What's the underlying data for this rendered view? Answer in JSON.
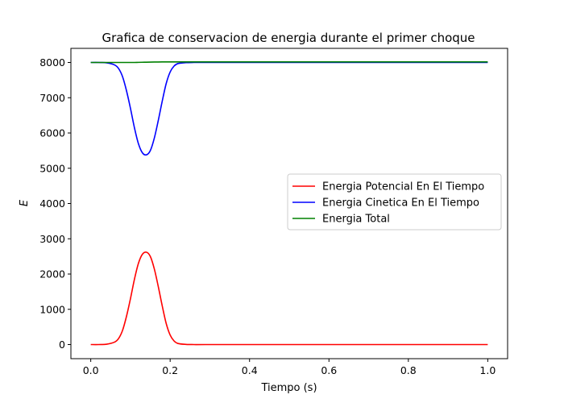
{
  "chart_data": {
    "type": "line",
    "title": "Grafica de conservacion de energia durante el primer choque",
    "xlabel": "Tiempo (s)",
    "ylabel": "E",
    "xlim": [
      -0.05,
      1.05
    ],
    "ylim": [
      -400,
      8400
    ],
    "xticks": [
      0.0,
      0.2,
      0.4,
      0.6,
      0.8,
      1.0
    ],
    "xtick_labels": [
      "0.0",
      "0.2",
      "0.4",
      "0.6",
      "0.8",
      "1.0"
    ],
    "yticks": [
      0,
      1000,
      2000,
      3000,
      4000,
      5000,
      6000,
      7000,
      8000
    ],
    "ytick_labels": [
      "0",
      "1000",
      "2000",
      "3000",
      "4000",
      "5000",
      "6000",
      "7000",
      "8000"
    ],
    "grid": false,
    "legend_position": "center-right",
    "x": [
      0.0,
      0.02,
      0.04,
      0.06,
      0.07,
      0.08,
      0.09,
      0.1,
      0.11,
      0.12,
      0.13,
      0.14,
      0.15,
      0.16,
      0.17,
      0.18,
      0.19,
      0.2,
      0.21,
      0.22,
      0.24,
      0.26,
      0.3,
      0.4,
      0.5,
      0.6,
      0.7,
      0.8,
      0.9,
      1.0
    ],
    "series": [
      {
        "name": "Energia Potencial En El Tiempo",
        "color": "#ff0000",
        "values": [
          0,
          0,
          10,
          70,
          170,
          400,
          800,
          1300,
          1850,
          2300,
          2560,
          2620,
          2500,
          2150,
          1650,
          1100,
          600,
          270,
          100,
          30,
          5,
          0,
          0,
          0,
          0,
          0,
          0,
          0,
          0,
          0
        ]
      },
      {
        "name": "Energia Cinetica En El Tiempo",
        "color": "#0000ff",
        "values": [
          8000,
          8000,
          7990,
          7930,
          7830,
          7600,
          7200,
          6700,
          6150,
          5700,
          5440,
          5380,
          5500,
          5850,
          6350,
          6900,
          7400,
          7730,
          7900,
          7970,
          7995,
          8000,
          8000,
          8000,
          8000,
          8000,
          8000,
          8000,
          8000,
          8000
        ]
      },
      {
        "name": "Energia Total",
        "color": "#008000",
        "values": [
          8000,
          8000,
          8000,
          8000,
          8000,
          8000,
          8000,
          8000,
          8000,
          8003,
          8006,
          8008,
          8010,
          8012,
          8014,
          8015,
          8015,
          8015,
          8015,
          8015,
          8015,
          8015,
          8015,
          8015,
          8015,
          8015,
          8015,
          8015,
          8015,
          8015
        ]
      }
    ]
  }
}
